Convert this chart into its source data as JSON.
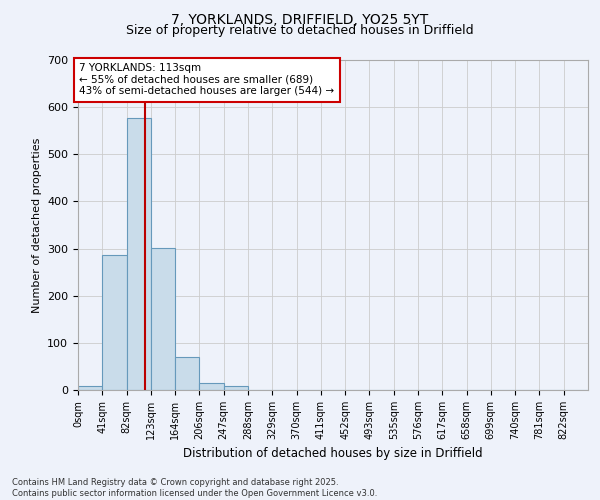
{
  "title1": "7, YORKLANDS, DRIFFIELD, YO25 5YT",
  "title2": "Size of property relative to detached houses in Driffield",
  "xlabel": "Distribution of detached houses by size in Driffield",
  "ylabel": "Number of detached properties",
  "bin_labels": [
    "0sqm",
    "41sqm",
    "82sqm",
    "123sqm",
    "164sqm",
    "206sqm",
    "247sqm",
    "288sqm",
    "329sqm",
    "370sqm",
    "411sqm",
    "452sqm",
    "493sqm",
    "535sqm",
    "576sqm",
    "617sqm",
    "658sqm",
    "699sqm",
    "740sqm",
    "781sqm",
    "822sqm"
  ],
  "bar_values": [
    8,
    287,
    577,
    302,
    70,
    15,
    8,
    0,
    0,
    0,
    0,
    0,
    0,
    0,
    0,
    0,
    0,
    0,
    0,
    0,
    0
  ],
  "bar_color": "#c9dcea",
  "bar_edge_color": "#6699bb",
  "bar_edge_width": 0.8,
  "grid_color": "#cccccc",
  "background_color": "#eef2fa",
  "vline_x": 113,
  "vline_color": "#bb0000",
  "annotation_line1": "7 YORKLANDS: 113sqm",
  "annotation_line2": "← 55% of detached houses are smaller (689)",
  "annotation_line3": "43% of semi-detached houses are larger (544) →",
  "annotation_box_color": "#cc0000",
  "ylim": [
    0,
    700
  ],
  "yticks": [
    0,
    100,
    200,
    300,
    400,
    500,
    600,
    700
  ],
  "footnote": "Contains HM Land Registry data © Crown copyright and database right 2025.\nContains public sector information licensed under the Open Government Licence v3.0.",
  "bin_width": 41,
  "n_bins": 21
}
